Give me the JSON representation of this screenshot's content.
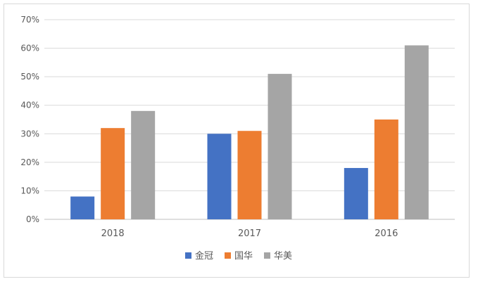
{
  "chart_data": {
    "type": "bar",
    "title": "",
    "xlabel": "",
    "ylabel": "",
    "categories": [
      "2018",
      "2017",
      "2016"
    ],
    "series": [
      {
        "name": "金冠",
        "color": "#4472C4",
        "values": [
          8,
          30,
          18
        ]
      },
      {
        "name": "国华",
        "color": "#ED7D31",
        "values": [
          32,
          31,
          35
        ]
      },
      {
        "name": "华美",
        "color": "#A5A5A5",
        "values": [
          38,
          51,
          61
        ]
      }
    ],
    "ylim": [
      0,
      70
    ],
    "yticks": [
      "0%",
      "10%",
      "20%",
      "30%",
      "40%",
      "50%",
      "60%",
      "70%"
    ],
    "grid": true,
    "legend_position": "bottom"
  }
}
